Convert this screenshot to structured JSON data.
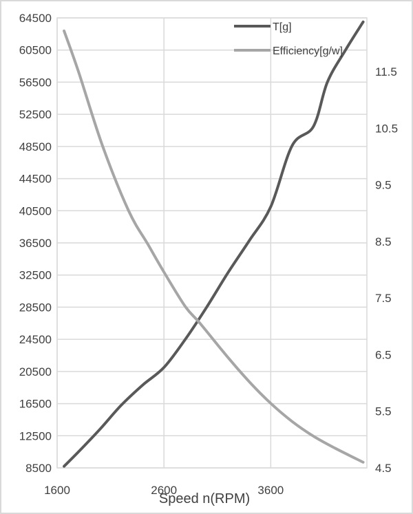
{
  "chart_data": {
    "type": "line",
    "title": "",
    "xlabel": "Speed n(RPM)",
    "ylabel": "",
    "y2label": "",
    "xlim": [
      1600,
      4500
    ],
    "ylim": [
      8500,
      64500
    ],
    "y2lim": [
      4.5,
      12.45
    ],
    "x_ticks": [
      1600,
      2600,
      3600
    ],
    "y_ticks": [
      8500,
      12500,
      16500,
      20500,
      24500,
      28500,
      32500,
      36500,
      40500,
      44500,
      48500,
      52500,
      56500,
      60500,
      64500
    ],
    "y2_ticks": [
      4.5,
      5.5,
      6.5,
      7.5,
      8.5,
      9.5,
      10.5,
      11.5
    ],
    "grid": true,
    "legend_position": "top-right-inside",
    "series": [
      {
        "name": "T[g]",
        "axis": "left",
        "color": "#595959",
        "x": [
          1665,
          1800,
          2000,
          2200,
          2400,
          2600,
          2800,
          3000,
          3200,
          3400,
          3600,
          3800,
          4000,
          4130,
          4300,
          4465
        ],
        "values": [
          8700,
          10500,
          13300,
          16300,
          18800,
          21000,
          24500,
          28500,
          32800,
          36800,
          41000,
          48600,
          51000,
          56500,
          60500,
          64000
        ]
      },
      {
        "name": "Efficiency[g/w]",
        "axis": "right",
        "color": "#a6a6a6",
        "x": [
          1665,
          1800,
          2025,
          2270,
          2450,
          2600,
          2800,
          2940,
          3200,
          3400,
          3600,
          3800,
          4000,
          4200,
          4465
        ],
        "values": [
          12.22,
          11.5,
          10.19,
          9.04,
          8.45,
          7.96,
          7.35,
          7.05,
          6.45,
          6.02,
          5.64,
          5.32,
          5.06,
          4.85,
          4.6
        ]
      }
    ]
  },
  "legend": {
    "items": [
      {
        "label": "T[g]",
        "color": "#595959"
      },
      {
        "label": "Efficiency[g/w]",
        "color": "#a6a6a6"
      }
    ]
  },
  "axes": {
    "x_title": "Speed n(RPM)",
    "x_tick_labels": [
      "1600",
      "2600",
      "3600"
    ],
    "y_tick_labels": [
      "8500",
      "12500",
      "16500",
      "20500",
      "24500",
      "28500",
      "32500",
      "36500",
      "40500",
      "44500",
      "48500",
      "52500",
      "56500",
      "60500",
      "64500"
    ],
    "y2_tick_labels": [
      "4.5",
      "5.5",
      "6.5",
      "7.5",
      "8.5",
      "9.5",
      "10.5",
      "11.5"
    ]
  }
}
